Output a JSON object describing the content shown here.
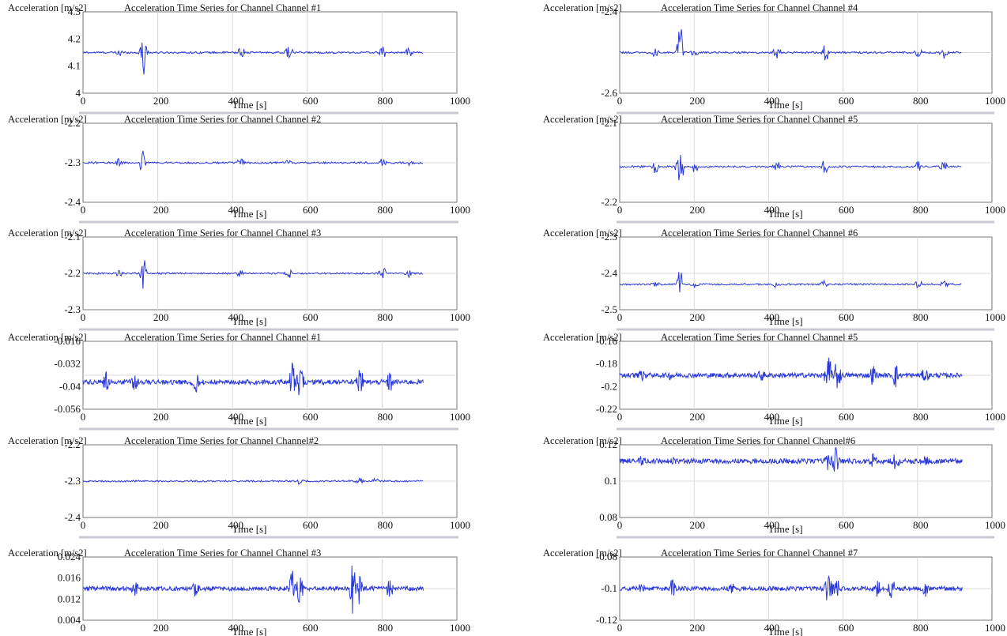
{
  "chart_data": [
    {
      "type": "line",
      "ylabel": "Acceleration [m/s2]",
      "title": "Acceleration Time Series for Channel Channel #1",
      "xlabel": "Time [s]",
      "xlim": [
        0,
        1000
      ],
      "xticks": [
        0,
        200,
        400,
        600,
        800,
        1000
      ],
      "ylim": [
        4.0,
        4.3
      ],
      "yticks": [
        "4.3",
        "4.2",
        "4.1",
        "4"
      ],
      "grid": true,
      "series": [
        {
          "baseline": 4.15,
          "x_end": 910,
          "bursts": [
            {
              "x": 95,
              "amp": 0.02
            },
            {
              "x": 160,
              "amp": 0.07
            },
            {
              "x": 165,
              "amp": 0.05
            },
            {
              "x": 420,
              "amp": 0.03
            },
            {
              "x": 550,
              "amp": 0.025
            },
            {
              "x": 800,
              "amp": 0.02
            },
            {
              "x": 870,
              "amp": 0.015
            }
          ]
        }
      ]
    },
    {
      "type": "line",
      "ylabel": "Acceleration [m/s2]",
      "title": "Acceleration Time Series for Channel Channel #2",
      "xlabel": "Time [s]",
      "xlim": [
        0,
        1000
      ],
      "xticks": [
        0,
        200,
        400,
        600,
        800,
        1000
      ],
      "ylim": [
        -2.4,
        -2.2
      ],
      "yticks": [
        "-2.2",
        "-2.3",
        "-2.4"
      ],
      "grid": true,
      "series": [
        {
          "baseline": -2.3,
          "x_end": 910,
          "bursts": [
            {
              "x": 95,
              "amp": 0.01
            },
            {
              "x": 160,
              "amp": 0.04
            },
            {
              "x": 420,
              "amp": 0.012
            },
            {
              "x": 550,
              "amp": 0.012
            },
            {
              "x": 800,
              "amp": 0.012
            },
            {
              "x": 870,
              "amp": 0.008
            }
          ]
        }
      ]
    },
    {
      "type": "line",
      "ylabel": "Acceleration [m/s2]",
      "title": "Acceleration Time Series for Channel Channel #3",
      "xlabel": "Time [s]",
      "xlim": [
        0,
        1000
      ],
      "xticks": [
        0,
        200,
        400,
        600,
        800,
        1000
      ],
      "ylim": [
        -2.3,
        -2.1
      ],
      "yticks": [
        "-2.1",
        "-2.2",
        "-2.3"
      ],
      "grid": true,
      "series": [
        {
          "baseline": -2.2,
          "x_end": 910,
          "bursts": [
            {
              "x": 95,
              "amp": 0.012
            },
            {
              "x": 160,
              "amp": 0.05
            },
            {
              "x": 420,
              "amp": 0.012
            },
            {
              "x": 550,
              "amp": 0.02
            },
            {
              "x": 800,
              "amp": 0.02
            },
            {
              "x": 870,
              "amp": 0.01
            }
          ]
        }
      ]
    },
    {
      "type": "line",
      "ylabel": "Acceleration [m/s2]",
      "title": "Acceleration Time Series for Channel Channel #1",
      "xlabel": "Time [s]",
      "xlim": [
        0,
        1000
      ],
      "xticks": [
        0,
        200,
        400,
        600,
        800,
        1000
      ],
      "ylim": [
        -0.056,
        -0.016
      ],
      "yticks": [
        "-0.016",
        "-0.032",
        "-0.04",
        "-0.056"
      ],
      "grid": true,
      "series": [
        {
          "baseline": -0.04,
          "x_end": 910,
          "dense": true,
          "bursts": [
            {
              "x": 60,
              "amp": 0.006
            },
            {
              "x": 140,
              "amp": 0.005
            },
            {
              "x": 300,
              "amp": 0.006
            },
            {
              "x": 560,
              "amp": 0.012
            },
            {
              "x": 580,
              "amp": 0.01
            },
            {
              "x": 740,
              "amp": 0.009
            },
            {
              "x": 820,
              "amp": 0.006
            }
          ]
        }
      ]
    },
    {
      "type": "line",
      "ylabel": "Acceleration [m/s2]",
      "title": "Acceleration Time Series for Channel Channel#2",
      "xlabel": "Time [s]",
      "xlim": [
        0,
        1000
      ],
      "xticks": [
        0,
        200,
        400,
        600,
        800,
        1000
      ],
      "ylim": [
        -2.4,
        -2.2
      ],
      "yticks": [
        "-2.2",
        "-2.3",
        "-2.4"
      ],
      "grid": true,
      "series": [
        {
          "baseline": -2.3,
          "x_end": 910,
          "bursts": [
            {
              "x": 580,
              "amp": 0.01
            },
            {
              "x": 740,
              "amp": 0.008
            },
            {
              "x": 780,
              "amp": 0.007
            }
          ]
        }
      ]
    },
    {
      "type": "line",
      "ylabel": "Acceleration [m/s2]",
      "title": "Acceleration Time Series for Channel Channel #3",
      "xlabel": "Time [s]",
      "xlim": [
        0,
        1000
      ],
      "xticks": [
        0,
        200,
        400,
        600,
        800,
        1000
      ],
      "ylim": [
        0.004,
        0.024
      ],
      "yticks": [
        "0.024",
        "0.016",
        "0.012",
        "0.004"
      ],
      "grid": true,
      "series": [
        {
          "baseline": 0.014,
          "x_end": 910,
          "dense": true,
          "bursts": [
            {
              "x": 140,
              "amp": 0.002
            },
            {
              "x": 300,
              "amp": 0.002
            },
            {
              "x": 560,
              "amp": 0.007
            },
            {
              "x": 580,
              "amp": 0.006
            },
            {
              "x": 720,
              "amp": 0.008
            },
            {
              "x": 740,
              "amp": 0.006
            },
            {
              "x": 820,
              "amp": 0.003
            }
          ]
        }
      ]
    },
    {
      "type": "line",
      "ylabel": "Acceleration [m/s2]",
      "title": "Acceleration Time Series for Channel Channel #4",
      "xlabel": "Time [s]",
      "xlim": [
        0,
        1000
      ],
      "xticks": [
        0,
        200,
        400,
        600,
        800,
        1000
      ],
      "ylim": [
        -2.6,
        -2.4
      ],
      "yticks": [
        "-2.4",
        "-2.6"
      ],
      "grid": true,
      "series": [
        {
          "baseline": -2.5,
          "x_end": 920,
          "bursts": [
            {
              "x": 95,
              "amp": 0.015
            },
            {
              "x": 160,
              "amp": 0.08
            },
            {
              "x": 200,
              "amp": 0.015
            },
            {
              "x": 420,
              "amp": 0.02
            },
            {
              "x": 550,
              "amp": 0.03
            },
            {
              "x": 800,
              "amp": 0.02
            },
            {
              "x": 870,
              "amp": 0.015
            }
          ]
        }
      ]
    },
    {
      "type": "line",
      "ylabel": "Acceleration [m/s2]",
      "title": "Acceleration Time Series for Channel Channel #5",
      "xlabel": "Time [s]",
      "xlim": [
        0,
        1000
      ],
      "xticks": [
        0,
        200,
        400,
        600,
        800,
        1000
      ],
      "ylim": [
        -2.2,
        -2.1
      ],
      "yticks": [
        "-2.1",
        "-2.2"
      ],
      "grid": true,
      "series": [
        {
          "baseline": -2.155,
          "x_end": 920,
          "bursts": [
            {
              "x": 95,
              "amp": 0.008
            },
            {
              "x": 160,
              "amp": 0.03
            },
            {
              "x": 200,
              "amp": 0.008
            },
            {
              "x": 420,
              "amp": 0.008
            },
            {
              "x": 550,
              "amp": 0.012
            },
            {
              "x": 800,
              "amp": 0.012
            },
            {
              "x": 870,
              "amp": 0.008
            }
          ]
        }
      ]
    },
    {
      "type": "line",
      "ylabel": "Acceleration [m/s2]",
      "title": "Acceleration Time Series for Channel Channel #6",
      "xlabel": "Time [s]",
      "xlim": [
        0,
        1000
      ],
      "xticks": [
        0,
        200,
        400,
        600,
        800,
        1000
      ],
      "ylim": [
        -2.5,
        -2.3
      ],
      "yticks": [
        "-2.3",
        "-2.4",
        "-2.5"
      ],
      "grid": true,
      "series": [
        {
          "baseline": -2.43,
          "x_end": 920,
          "bursts": [
            {
              "x": 95,
              "amp": 0.01
            },
            {
              "x": 160,
              "amp": 0.05
            },
            {
              "x": 200,
              "amp": 0.01
            },
            {
              "x": 420,
              "amp": 0.01
            },
            {
              "x": 550,
              "amp": 0.015
            },
            {
              "x": 800,
              "amp": 0.015
            },
            {
              "x": 870,
              "amp": 0.01
            }
          ]
        }
      ]
    },
    {
      "type": "line",
      "ylabel": "Acceleration [m/s2]",
      "title": "Acceleration Time Series for Channel Channel #5",
      "xlabel": "Time [s]",
      "xlim": [
        0,
        1000
      ],
      "xticks": [
        0,
        200,
        400,
        600,
        800,
        1000
      ],
      "ylim": [
        -0.22,
        -0.16
      ],
      "yticks": [
        "-0.16",
        "-0.18",
        "-0.2",
        "-0.22"
      ],
      "grid": true,
      "series": [
        {
          "baseline": -0.19,
          "x_end": 920,
          "dense": true,
          "bursts": [
            {
              "x": 60,
              "amp": 0.004
            },
            {
              "x": 140,
              "amp": 0.004
            },
            {
              "x": 380,
              "amp": 0.004
            },
            {
              "x": 560,
              "amp": 0.018
            },
            {
              "x": 585,
              "amp": 0.015
            },
            {
              "x": 680,
              "amp": 0.008
            },
            {
              "x": 740,
              "amp": 0.01
            },
            {
              "x": 820,
              "amp": 0.005
            }
          ]
        }
      ]
    },
    {
      "type": "line",
      "ylabel": "Acceleration [m/s2]",
      "title": "Acceleration Time Series for Channel Channel#6",
      "xlabel": "Time [s]",
      "xlim": [
        0,
        1000
      ],
      "xticks": [
        0,
        200,
        400,
        600,
        800,
        1000
      ],
      "ylim": [
        0.08,
        0.12
      ],
      "yticks": [
        "0.12",
        "0.1",
        "0.08"
      ],
      "grid": true,
      "series": [
        {
          "baseline": 0.111,
          "x_end": 920,
          "dense": true,
          "bursts": [
            {
              "x": 60,
              "amp": 0.002
            },
            {
              "x": 140,
              "amp": 0.002
            },
            {
              "x": 560,
              "amp": 0.004
            },
            {
              "x": 580,
              "amp": 0.008
            },
            {
              "x": 680,
              "amp": 0.003
            },
            {
              "x": 740,
              "amp": 0.005
            },
            {
              "x": 820,
              "amp": 0.003
            }
          ]
        }
      ]
    },
    {
      "type": "line",
      "ylabel": "Acceleration [m/s2]",
      "title": "Acceleration Time Series for Channel Channel #7",
      "xlabel": "Time [s]",
      "xlim": [
        0,
        1000
      ],
      "xticks": [
        0,
        200,
        400,
        600,
        800,
        1000
      ],
      "ylim": [
        -0.12,
        -0.08
      ],
      "yticks": [
        "-0.08",
        "-0.1",
        "-0.12"
      ],
      "grid": true,
      "series": [
        {
          "baseline": -0.1,
          "x_end": 920,
          "dense": true,
          "bursts": [
            {
              "x": 60,
              "amp": 0.003
            },
            {
              "x": 140,
              "amp": 0.007
            },
            {
              "x": 300,
              "amp": 0.003
            },
            {
              "x": 560,
              "amp": 0.012
            },
            {
              "x": 580,
              "amp": 0.007
            },
            {
              "x": 690,
              "amp": 0.005
            },
            {
              "x": 730,
              "amp": 0.008
            },
            {
              "x": 820,
              "amp": 0.004
            }
          ]
        }
      ]
    }
  ],
  "colors": {
    "signal": "#2a38d8",
    "grid": "#d8d8d8",
    "frame": "#777777",
    "separator": "#c9c9d4"
  }
}
